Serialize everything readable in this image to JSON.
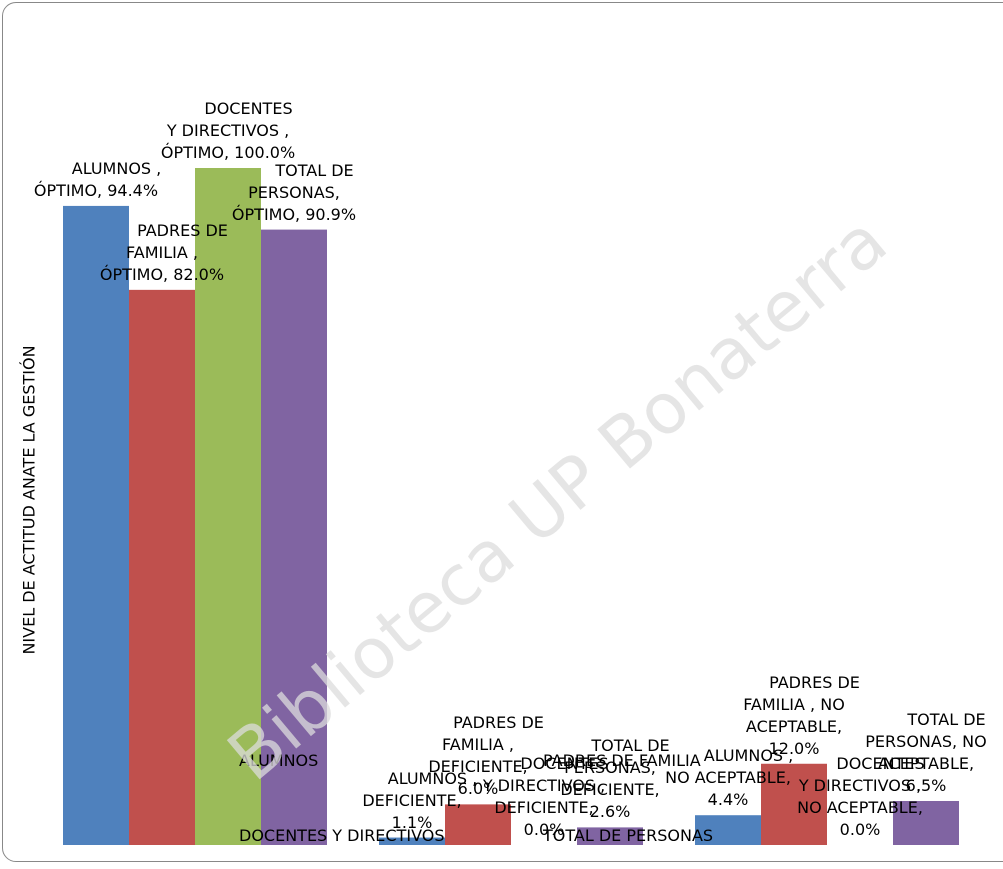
{
  "chart_data": {
    "type": "bar",
    "y_axis_label": "NIVEL DE ACTITUD ANATE LA GESTIÓN",
    "categories": [
      null,
      null,
      null
    ],
    "ylim": [
      0,
      100
    ],
    "legend": "bottom",
    "series": [
      {
        "name": "ALUMNOS",
        "color": "#4f81bd",
        "values": [
          94.4,
          1.1,
          4.4
        ],
        "value_labels": [
          "ALUMNOS , ÓPTIMO, 94.4%",
          "ALUMNOS , DEFICIENTE, 1.1%",
          "ALUMNOS , NO ACEPTABLE, 4.4%"
        ]
      },
      {
        "name": "PADRES DE FAMILIA",
        "color": "#c0504d",
        "values": [
          82.0,
          6.0,
          12.0
        ],
        "value_labels": [
          "PADRES DE FAMILIA , ÓPTIMO, 82.0%",
          "PADRES DE FAMILIA , DEFICIENTE, 6.0%",
          "PADRES DE FAMILIA , NO ACEPTABLE, 12.0%"
        ]
      },
      {
        "name": "DOCENTES Y DIRECTIVOS",
        "color": "#9bbb59",
        "values": [
          100.0,
          0.0,
          0.0
        ],
        "value_labels": [
          "DOCENTES Y DIRECTIVOS , ÓPTIMO, 100.0%",
          "DOCENTES Y DIRECTIVOS , DEFICIENTE, 0.0%",
          "DOCENTES Y DIRECTIVOS , NO ACEPTABLE, 0.0%"
        ]
      },
      {
        "name": "TOTAL DE PERSONAS",
        "color": "#8064a2",
        "values": [
          90.9,
          2.6,
          6.5
        ],
        "value_labels": [
          "TOTAL DE PERSONAS, ÓPTIMO, 90.9%",
          "TOTAL DE PERSONAS, DEFICIENTE, 2.6%",
          "TOTAL DE PERSONAS, NO ACEPTABLE, 6.5%"
        ]
      }
    ]
  },
  "watermark": "Biblioteca UP Bonaterra"
}
